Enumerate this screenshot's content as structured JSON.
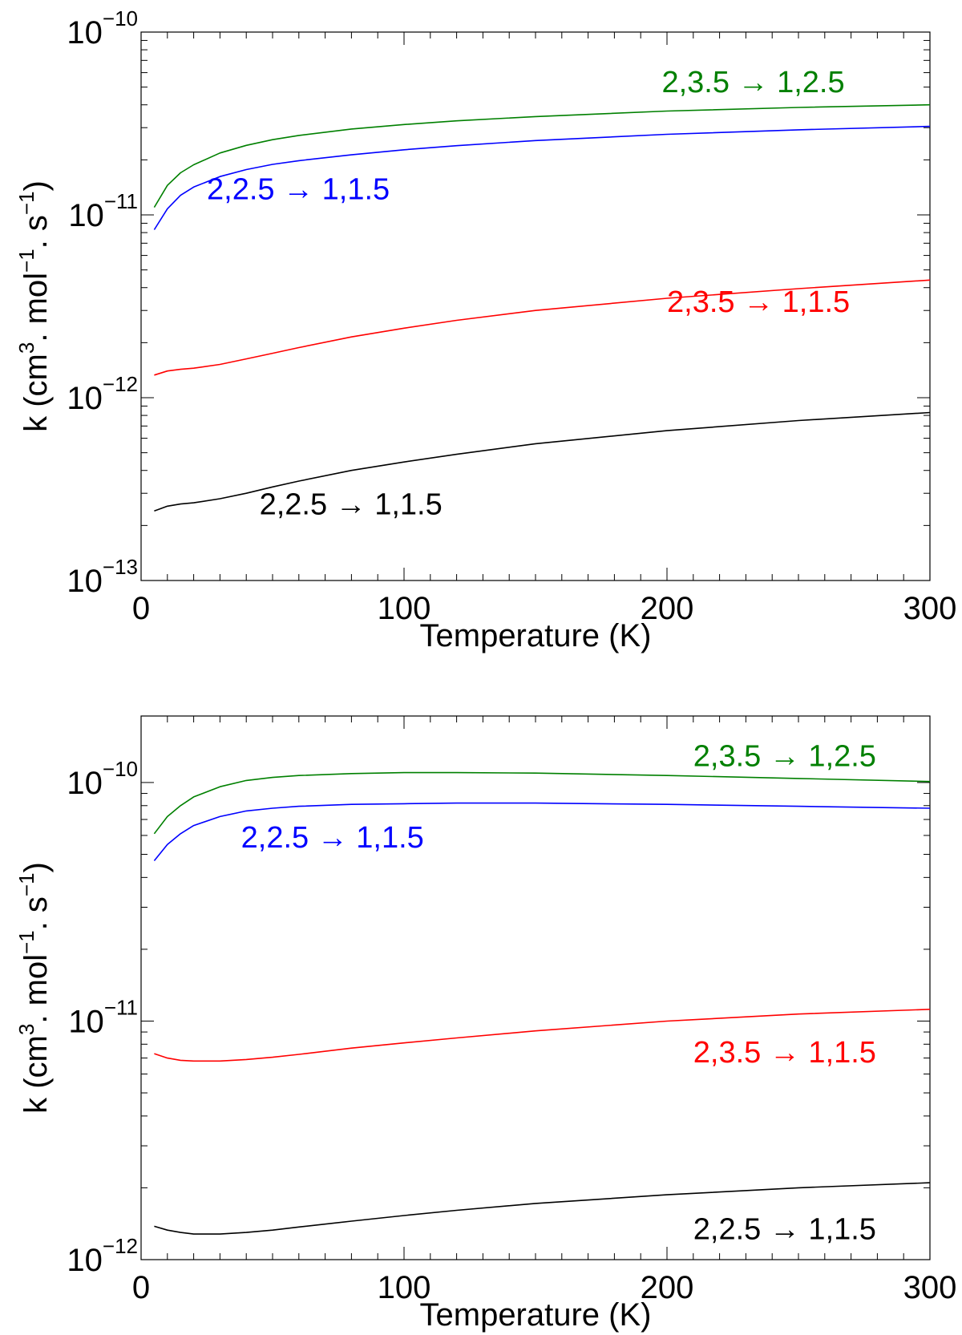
{
  "chart_data": [
    {
      "type": "line",
      "xlabel": "Temperature (K)",
      "ylabel": "k  (cm3. mol−1. s−1)",
      "ylabel_parts": {
        "prefix": "k  (cm",
        "exp1": "3",
        "mid": ". mol",
        "exp2": "−1",
        "mid2": ". s",
        "exp3": "−1",
        "suffix": ")"
      },
      "xlim": [
        0,
        300
      ],
      "ylim": [
        1e-13,
        1e-10
      ],
      "yscale": "log",
      "x_ticks": [
        0,
        100,
        200,
        300
      ],
      "x_tick_labels": [
        "0",
        "100",
        "200",
        "300"
      ],
      "y_ticks": [
        1e-13,
        1e-12,
        1e-11,
        1e-10
      ],
      "y_tick_labels": [
        {
          "base": "10",
          "exp": "−13"
        },
        {
          "base": "10",
          "exp": "−12"
        },
        {
          "base": "10",
          "exp": "−11"
        },
        {
          "base": "10",
          "exp": "−10"
        }
      ],
      "grid": false,
      "series": [
        {
          "name": "2,3.5 → 1,2.5",
          "color": "#008000",
          "label_anchor": [
            198,
            4.7e-11
          ],
          "x": [
            5,
            10,
            15,
            20,
            30,
            40,
            50,
            60,
            80,
            100,
            120,
            150,
            200,
            250,
            300
          ],
          "y": [
            1.1e-11,
            1.45e-11,
            1.7e-11,
            1.88e-11,
            2.18e-11,
            2.4e-11,
            2.58e-11,
            2.72e-11,
            2.95e-11,
            3.12e-11,
            3.27e-11,
            3.45e-11,
            3.7e-11,
            3.87e-11,
            4e-11
          ]
        },
        {
          "name": "2,2.5 → 1,1.5",
          "color": "#0000ff",
          "label_anchor": [
            25,
            1.22e-11
          ],
          "x": [
            5,
            10,
            15,
            20,
            30,
            40,
            50,
            60,
            80,
            100,
            120,
            150,
            200,
            250,
            300
          ],
          "y": [
            8.3e-12,
            1.08e-11,
            1.28e-11,
            1.42e-11,
            1.62e-11,
            1.77e-11,
            1.89e-11,
            1.98e-11,
            2.13e-11,
            2.27e-11,
            2.39e-11,
            2.55e-11,
            2.76e-11,
            2.92e-11,
            3.05e-11
          ]
        },
        {
          "name": "2,3.5 → 1,1.5",
          "color": "#ff0000",
          "label_anchor": [
            200,
            2.95e-12
          ],
          "x": [
            5,
            10,
            15,
            20,
            30,
            40,
            50,
            60,
            80,
            100,
            120,
            150,
            200,
            250,
            300
          ],
          "y": [
            1.33e-12,
            1.4e-12,
            1.43e-12,
            1.45e-12,
            1.52e-12,
            1.63e-12,
            1.75e-12,
            1.88e-12,
            2.15e-12,
            2.4e-12,
            2.65e-12,
            3e-12,
            3.5e-12,
            3.95e-12,
            4.4e-12
          ]
        },
        {
          "name": "2,2.5 → 1,1.5",
          "color": "#000000",
          "label_anchor": [
            45,
            2.3e-13
          ],
          "x": [
            5,
            10,
            15,
            20,
            30,
            40,
            50,
            60,
            80,
            100,
            120,
            150,
            200,
            250,
            300
          ],
          "y": [
            2.4e-13,
            2.55e-13,
            2.62e-13,
            2.66e-13,
            2.8e-13,
            3e-13,
            3.25e-13,
            3.5e-13,
            4e-13,
            4.45e-13,
            4.9e-13,
            5.6e-13,
            6.6e-13,
            7.5e-13,
            8.3e-13
          ]
        }
      ]
    },
    {
      "type": "line",
      "xlabel": "Temperature (K)",
      "ylabel": "k  (cm3. mol−1. s−1)",
      "ylabel_parts": {
        "prefix": "k  (cm",
        "exp1": "3",
        "mid": ". mol",
        "exp2": "−1",
        "mid2": ". s",
        "exp3": "−1",
        "suffix": ")"
      },
      "xlim": [
        0,
        300
      ],
      "ylim": [
        1e-12,
        1.9e-10
      ],
      "yscale": "log",
      "x_ticks": [
        0,
        100,
        200,
        300
      ],
      "x_tick_labels": [
        "0",
        "100",
        "200",
        "300"
      ],
      "y_ticks": [
        1e-12,
        1e-11,
        1e-10
      ],
      "y_tick_labels": [
        {
          "base": "10",
          "exp": "−12"
        },
        {
          "base": "10",
          "exp": "−11"
        },
        {
          "base": "10",
          "exp": "−10"
        }
      ],
      "grid": false,
      "series": [
        {
          "name": "2,3.5 → 1,2.5",
          "color": "#008000",
          "label_anchor": [
            210,
            1.17e-10
          ],
          "x": [
            5,
            10,
            15,
            20,
            30,
            40,
            50,
            60,
            80,
            100,
            120,
            150,
            200,
            250,
            300
          ],
          "y": [
            6.1e-11,
            7.2e-11,
            8e-11,
            8.7e-11,
            9.6e-11,
            1.02e-10,
            1.05e-10,
            1.07e-10,
            1.09e-10,
            1.1e-10,
            1.1e-10,
            1.095e-10,
            1.07e-10,
            1.04e-10,
            1.01e-10
          ]
        },
        {
          "name": "2,2.5 → 1,1.5",
          "color": "#0000ff",
          "label_anchor": [
            38,
            5.35e-11
          ],
          "x": [
            5,
            10,
            15,
            20,
            30,
            40,
            50,
            60,
            80,
            100,
            120,
            150,
            200,
            250,
            300
          ],
          "y": [
            4.7e-11,
            5.5e-11,
            6.1e-11,
            6.6e-11,
            7.2e-11,
            7.6e-11,
            7.8e-11,
            7.95e-11,
            8.1e-11,
            8.15e-11,
            8.2e-11,
            8.2e-11,
            8.1e-11,
            7.95e-11,
            7.8e-11
          ]
        },
        {
          "name": "2,3.5 → 1,1.5",
          "color": "#ff0000",
          "label_anchor": [
            210,
            6.7e-12
          ],
          "x": [
            5,
            10,
            15,
            20,
            30,
            40,
            50,
            60,
            80,
            100,
            120,
            150,
            200,
            250,
            300
          ],
          "y": [
            7.3e-12,
            7e-12,
            6.85e-12,
            6.8e-12,
            6.8e-12,
            6.9e-12,
            7.05e-12,
            7.25e-12,
            7.7e-12,
            8.1e-12,
            8.5e-12,
            9.1e-12,
            1e-11,
            1.07e-11,
            1.12e-11
          ]
        },
        {
          "name": "2,2.5 → 1,1.5",
          "color": "#000000",
          "label_anchor": [
            210,
            1.22e-12
          ],
          "x": [
            5,
            10,
            15,
            20,
            30,
            40,
            50,
            60,
            80,
            100,
            120,
            150,
            200,
            250,
            300
          ],
          "y": [
            1.38e-12,
            1.33e-12,
            1.3e-12,
            1.28e-12,
            1.28e-12,
            1.3e-12,
            1.33e-12,
            1.37e-12,
            1.45e-12,
            1.53e-12,
            1.61e-12,
            1.72e-12,
            1.87e-12,
            2e-12,
            2.1e-12
          ]
        }
      ]
    }
  ]
}
